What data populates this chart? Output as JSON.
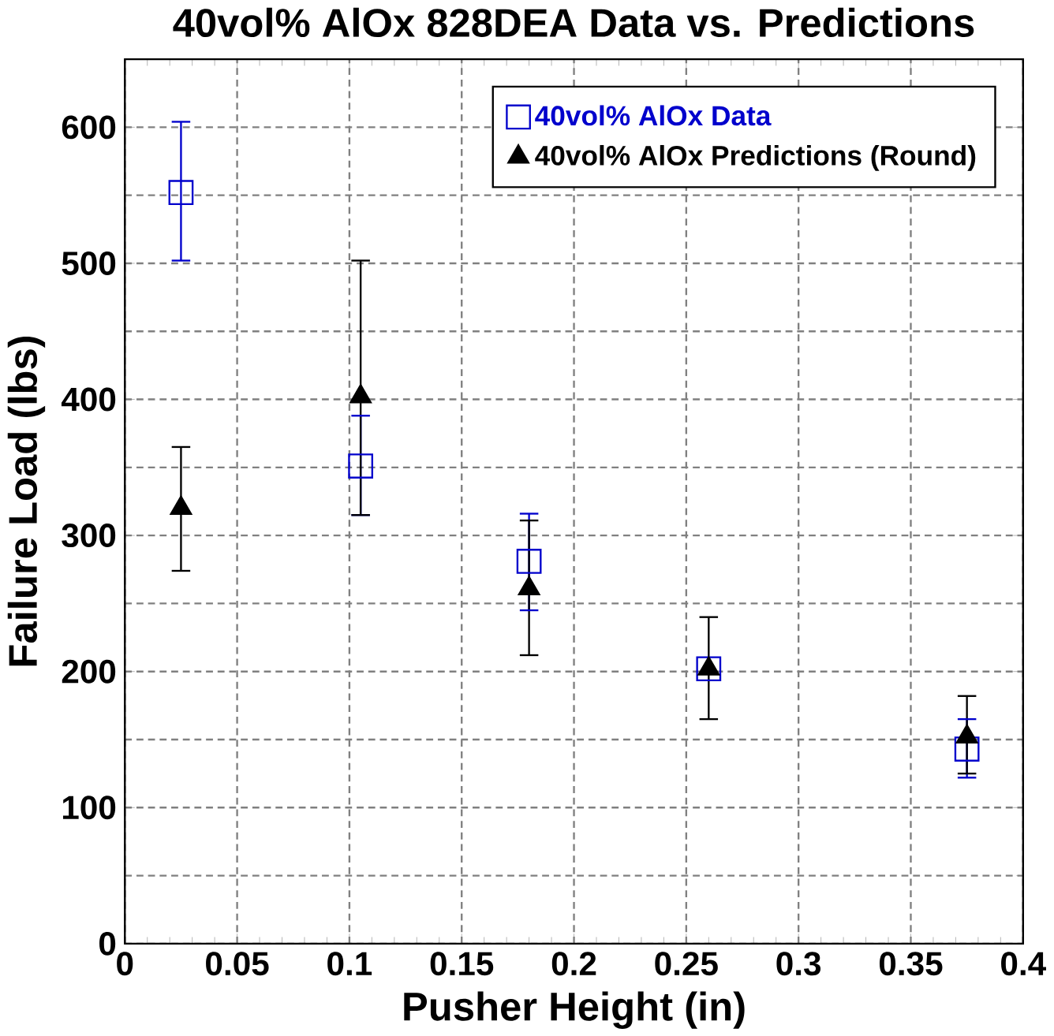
{
  "chart_data": {
    "type": "scatter",
    "title": "40vol% AlOx 828DEA Data vs. Predictions",
    "xlabel": "Pusher Height (in)",
    "ylabel": "Failure Load (lbs)",
    "xlim": [
      0,
      0.4
    ],
    "xticks": [
      0,
      0.05,
      0.1,
      0.15,
      0.2,
      0.25,
      0.3,
      0.35,
      0.4
    ],
    "ylim": [
      0,
      650
    ],
    "yticks": [
      0,
      100,
      200,
      300,
      400,
      500,
      600
    ],
    "grid": true,
    "legend": "top right",
    "series": [
      {
        "name": "40vol% AlOx Data",
        "color": "#0000cc",
        "marker": "square",
        "x": [
          0.025,
          0.105,
          0.18,
          0.26,
          0.375
        ],
        "values": [
          552,
          351,
          281,
          202,
          143
        ],
        "errors": [
          [
            502,
            604
          ],
          [
            315,
            388
          ],
          [
            245,
            316
          ],
          null,
          [
            122,
            165
          ]
        ]
      },
      {
        "name": "40vol% AlOx Predictions (Round)",
        "color": "#000000",
        "marker": "triangle",
        "x": [
          0.025,
          0.105,
          0.18,
          0.26,
          0.375
        ],
        "values": [
          320,
          402,
          261,
          202,
          152
        ],
        "errors": [
          [
            274,
            365
          ],
          [
            315,
            502
          ],
          [
            212,
            311
          ],
          [
            165,
            240
          ],
          [
            125,
            182
          ]
        ]
      }
    ]
  }
}
